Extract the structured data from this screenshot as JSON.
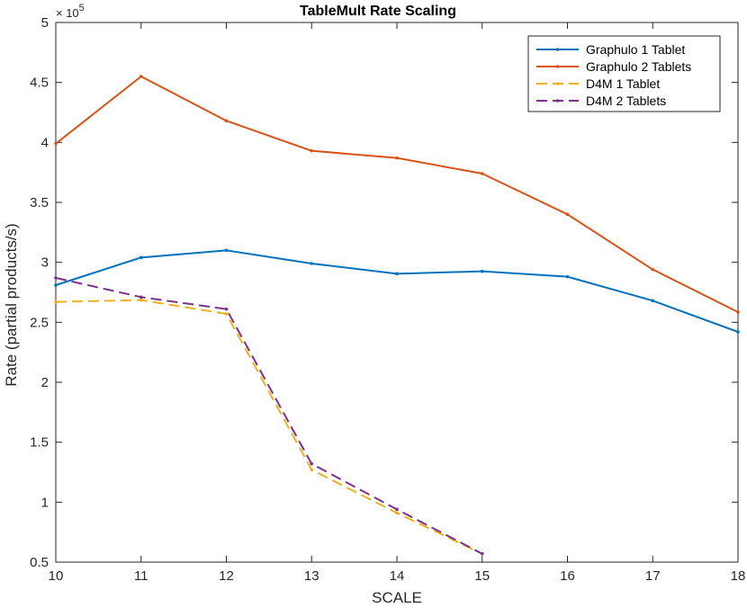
{
  "chart_data": {
    "type": "line",
    "title": "TableMult Rate Scaling",
    "xlabel": "SCALE",
    "ylabel": "Rate (partial products/s)",
    "y_multiplier_label": "× 10",
    "y_multiplier_exponent": "5",
    "xlim": [
      10,
      18
    ],
    "ylim": [
      0.5,
      5
    ],
    "x_ticks": [
      10,
      11,
      12,
      13,
      14,
      15,
      16,
      17,
      18
    ],
    "x_tick_labels": [
      "10",
      "11",
      "12",
      "13",
      "14",
      "15",
      "16",
      "17",
      "18"
    ],
    "y_ticks": [
      0.5,
      1,
      1.5,
      2,
      2.5,
      3,
      3.5,
      4,
      4.5,
      5
    ],
    "y_tick_labels": [
      "0.5",
      "1",
      "1.5",
      "2",
      "2.5",
      "3",
      "3.5",
      "4",
      "4.5",
      "5"
    ],
    "legend_position": "top-right",
    "grid": false,
    "series": [
      {
        "name": "Graphulo 1 Tablet",
        "color": "#0072bd",
        "dash": "solid",
        "x": [
          10,
          11,
          12,
          13,
          14,
          15,
          16,
          17,
          18
        ],
        "values": [
          2.81,
          3.04,
          3.1,
          2.99,
          2.905,
          2.925,
          2.88,
          2.68,
          2.42
        ]
      },
      {
        "name": "Graphulo 2 Tablets",
        "color": "#d95319",
        "dash": "solid",
        "x": [
          10,
          11,
          12,
          13,
          14,
          15,
          16,
          17,
          18
        ],
        "values": [
          3.99,
          4.55,
          4.18,
          3.93,
          3.87,
          3.74,
          3.4,
          2.94,
          2.585
        ]
      },
      {
        "name": "D4M 1 Tablet",
        "color": "#edb120",
        "dash": "dashed",
        "x": [
          10,
          11,
          12,
          13,
          14,
          15
        ],
        "values": [
          2.67,
          2.685,
          2.57,
          1.27,
          0.91,
          0.57
        ]
      },
      {
        "name": "D4M 2 Tablets",
        "color": "#7e2f8e",
        "dash": "dashed",
        "x": [
          10,
          11,
          12,
          13,
          14,
          15
        ],
        "values": [
          2.87,
          2.71,
          2.61,
          1.32,
          0.94,
          0.57
        ]
      }
    ]
  }
}
